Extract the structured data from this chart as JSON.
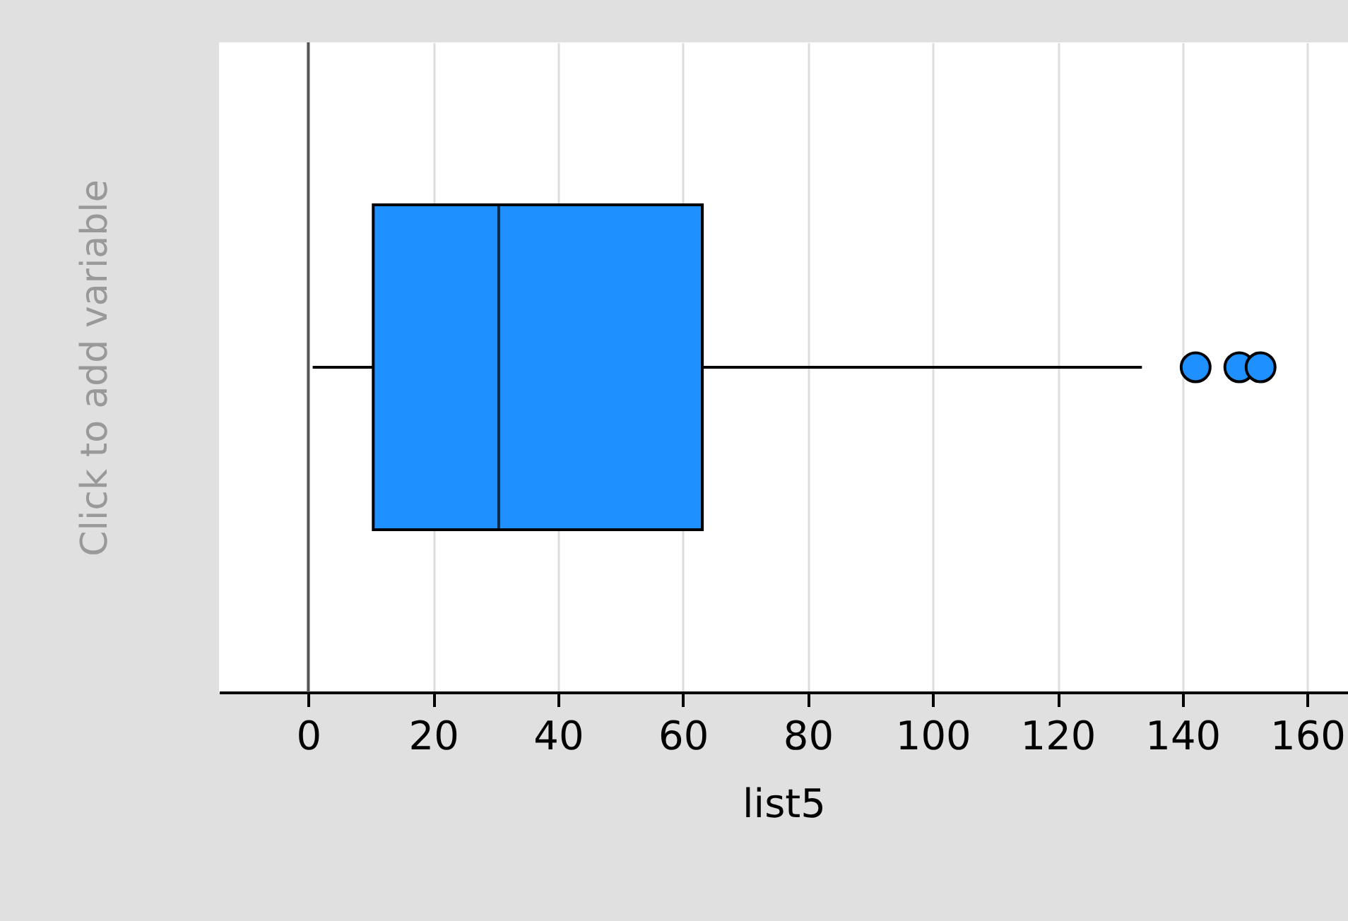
{
  "chart_data": {
    "type": "box",
    "orientation": "horizontal",
    "xlabel": "list5",
    "ylabel": "Click to add variable",
    "categories": [
      null
    ],
    "series": [
      {
        "color": "#1e90ff",
        "boxes": [
          {
            "low": 0.7,
            "q1": 10.4,
            "median": 30.5,
            "q3": 63.1,
            "high": 133.5,
            "outliers": [
              142.1,
              149.1,
              152.5
            ]
          }
        ]
      }
    ],
    "xlim": [
      -14.3,
      166.5
    ],
    "xticks": [
      0,
      20,
      40,
      60,
      80,
      100,
      120,
      140,
      160
    ],
    "grid": "x",
    "ref_lines": [
      {
        "axis": "x",
        "value": 0,
        "color": "#555555"
      }
    ]
  }
}
